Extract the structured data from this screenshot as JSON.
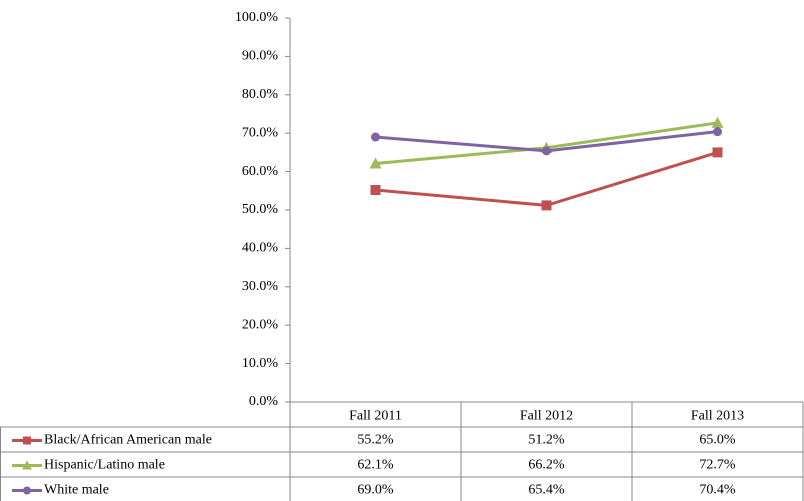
{
  "chart_data": {
    "type": "line",
    "categories": [
      "Fall 2011",
      "Fall 2012",
      "Fall 2013"
    ],
    "series": [
      {
        "name": "Black/African American male",
        "color": "#c0504d",
        "marker": "square",
        "values": [
          55.2,
          51.2,
          65.0
        ],
        "value_labels": [
          "55.2%",
          "51.2%",
          "65.0%"
        ]
      },
      {
        "name": "Hispanic/Latino male",
        "color": "#9bbb59",
        "marker": "triangle",
        "values": [
          62.1,
          66.2,
          72.7
        ],
        "value_labels": [
          "62.1%",
          "66.2%",
          "72.7%"
        ]
      },
      {
        "name": "White male",
        "color": "#8064a2",
        "marker": "circle",
        "values": [
          69.0,
          65.4,
          70.4
        ],
        "value_labels": [
          "69.0%",
          "65.4%",
          "70.4%"
        ]
      }
    ],
    "ylim": [
      0,
      100
    ],
    "yticks": [
      {
        "value": 0,
        "label": "0.0%"
      },
      {
        "value": 10,
        "label": "10.0%"
      },
      {
        "value": 20,
        "label": "20.0%"
      },
      {
        "value": 30,
        "label": "30.0%"
      },
      {
        "value": 40,
        "label": "40.0%"
      },
      {
        "value": 50,
        "label": "50.0%"
      },
      {
        "value": 60,
        "label": "60.0%"
      },
      {
        "value": 70,
        "label": "70.0%"
      },
      {
        "value": 80,
        "label": "80.0%"
      },
      {
        "value": 90,
        "label": "90.0%"
      },
      {
        "value": 100,
        "label": "100.0%"
      }
    ],
    "grid": false,
    "legend": "table"
  }
}
